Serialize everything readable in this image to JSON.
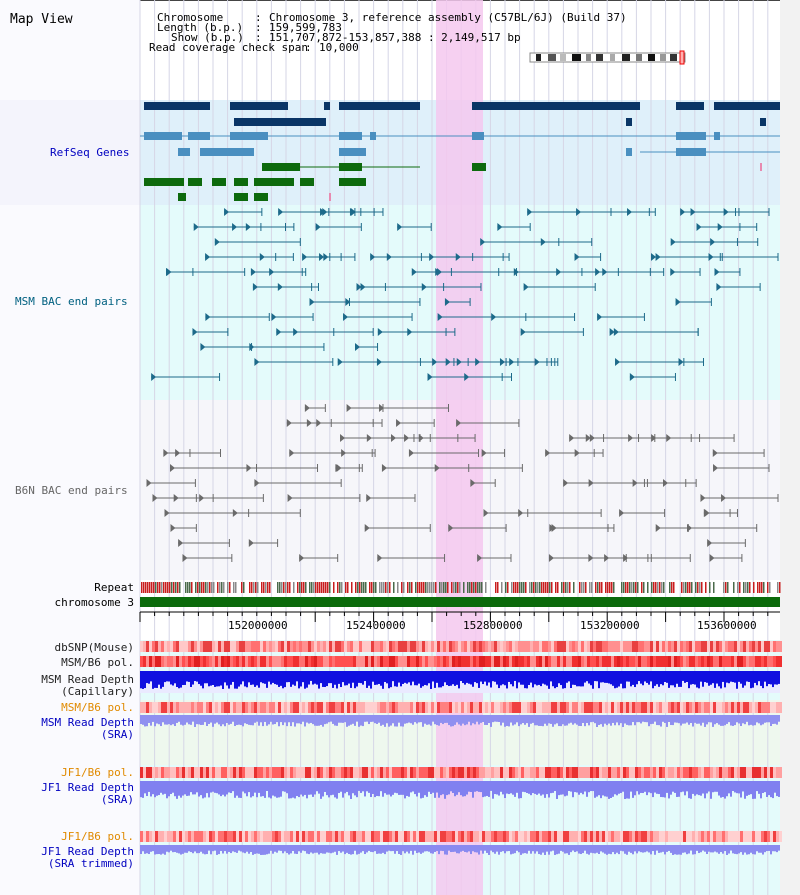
{
  "view": {
    "title": "Map View",
    "info": {
      "chromosome_label": "Chromosome",
      "chromosome_value": "Chromosome 3, reference assembly (C57BL/6J) (Build 37)",
      "length_label": "Length (b.p.)",
      "length_value": "159,599,783",
      "show_label": "Show (b.p.)",
      "show_value": "151,707,872-153,857,388 : 2,149,517 bp",
      "span_label": "Read coverage check span",
      "span_value": "10,000"
    }
  },
  "tracks": {
    "refseq": "RefSeq Genes",
    "msm_bac": "MSM BAC end pairs",
    "b6n_bac": "B6N BAC end pairs",
    "repeat": "Repeat",
    "chromosome": "chromosome 3",
    "dbsnp": "dbSNP(Mouse)",
    "msm_pol1": "MSM/B6 pol.",
    "msm_depth_cap_1": "MSM Read Depth",
    "msm_depth_cap_2": "(Capillary)",
    "msm_pol2": "MSM/B6 pol.",
    "msm_depth_sra_1": "MSM Read Depth",
    "msm_depth_sra_2": "(SRA)",
    "jf1_pol1": "JF1/B6 pol.",
    "jf1_depth_sra_1": "JF1 Read Depth",
    "jf1_depth_sra_2": "(SRA)",
    "jf1_pol2": "JF1/B6 pol.",
    "jf1_depth_trim_1": "JF1 Read Depth",
    "jf1_depth_trim_2": "(SRA trimmed)"
  },
  "axis": {
    "ticks": [
      "152000000",
      "152400000",
      "152800000",
      "153200000",
      "153600000"
    ]
  },
  "colors": {
    "highlight": "#f5c8ef",
    "refseq_bg": "#dff0fa",
    "msm_bg": "#e4fbfb",
    "b6n_bg": "#f6f6fa",
    "lower_bg": "#e4fbfb",
    "gene_dark": "#0a3566",
    "gene_mid": "#4a8fc0",
    "gene_green": "#0d6a0d",
    "bac_msm": "#1d6a8a",
    "bac_b6n": "#6a6a6a",
    "msm_label": "#006080",
    "orange_label": "#e08a00",
    "blue_label": "#0000c0"
  }
}
